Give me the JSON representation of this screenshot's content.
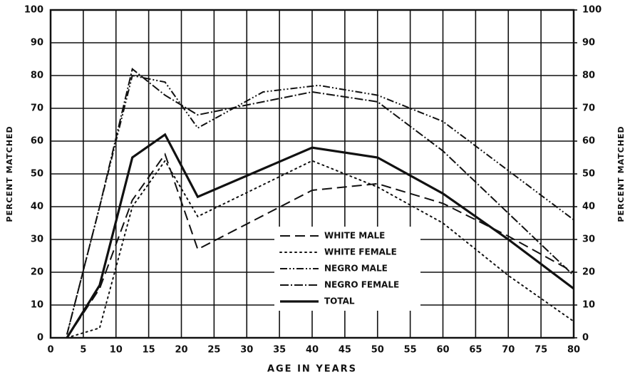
{
  "chart_data": {
    "type": "line",
    "xlabel": "AGE IN YEARS",
    "ylabel": "PERCENT MATCHED",
    "y2label": "PERCENT MATCHED",
    "xlim": [
      0,
      80
    ],
    "xticks": [
      0,
      5,
      10,
      15,
      20,
      25,
      30,
      35,
      40,
      45,
      50,
      55,
      60,
      65,
      70,
      75,
      80
    ],
    "ylim": [
      0,
      100
    ],
    "yticks": [
      0,
      10,
      20,
      30,
      40,
      50,
      60,
      70,
      80,
      90,
      100
    ],
    "y2lim": [
      0,
      100
    ],
    "y2ticks": [
      0,
      10,
      20,
      30,
      40,
      50,
      60,
      70,
      80,
      90,
      100
    ],
    "grid": true,
    "series": [
      {
        "name": "WHITE MALE",
        "color": "#111111",
        "dash": "14 7",
        "x": [
          2.5,
          7.5,
          12.5,
          17.5,
          22.5,
          40,
          50,
          60,
          70,
          80
        ],
        "values": [
          0,
          15,
          42,
          56,
          27,
          45,
          47,
          41,
          31,
          20
        ]
      },
      {
        "name": "WHITE FEMALE",
        "color": "#111111",
        "dash": "2 5",
        "x": [
          2.5,
          7.5,
          12.5,
          17.5,
          22.5,
          40,
          50,
          60,
          70,
          80
        ],
        "values": [
          0,
          3,
          40,
          54,
          37,
          54,
          46,
          35,
          19,
          5
        ]
      },
      {
        "name": "NEGRO MALE",
        "color": "#111111",
        "dash": "10 3 2 3 2 3",
        "x": [
          2.5,
          7.5,
          12.5,
          17.5,
          22.5,
          32.5,
          41,
          50,
          60,
          70,
          80
        ],
        "values": [
          1,
          40,
          80,
          78,
          64,
          75,
          77,
          74,
          66,
          51,
          36
        ]
      },
      {
        "name": "NEGRO FEMALE",
        "color": "#111111",
        "dash": "12 3 2 3",
        "x": [
          2.5,
          7.5,
          12.5,
          17.5,
          22.5,
          40,
          50,
          60,
          70,
          80
        ],
        "values": [
          1,
          40,
          82,
          74,
          68,
          75,
          72,
          57,
          38,
          19
        ]
      },
      {
        "name": "TOTAL",
        "color": "#111111",
        "dash": "",
        "width": 3.2,
        "x": [
          2.5,
          7.5,
          12.5,
          17.5,
          22.5,
          40,
          50,
          60,
          70,
          80
        ],
        "values": [
          0,
          16,
          55,
          62,
          43,
          58,
          55,
          44,
          30,
          15
        ]
      }
    ]
  }
}
